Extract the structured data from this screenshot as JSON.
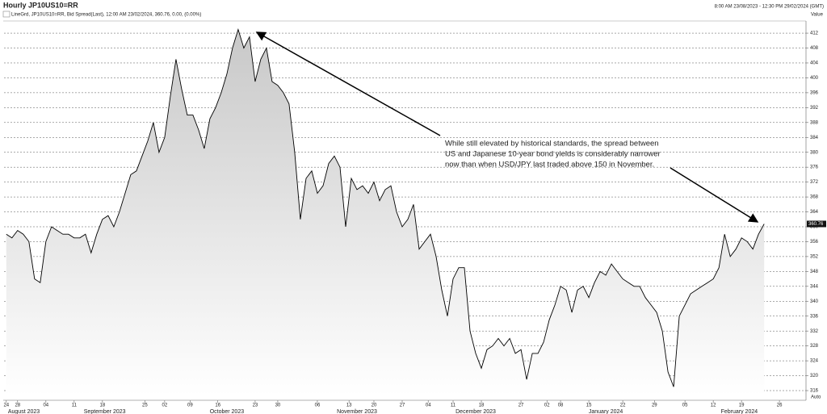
{
  "header": {
    "title": "Hourly JP10US10=RR",
    "time_range": "8:00 AM 23/08/2023 - 12:30 PM 29/02/2024 (GMT)"
  },
  "chart_data": {
    "type": "area",
    "legend_text": "LineGrd, JP10US10=RR, Bid Spread(Last), 12:00 AM 23/02/2024, 360.76, 0.00, (0.00%)",
    "y_axis_label": "Value",
    "corner_label": "Auto",
    "last_value": 360.76,
    "annotation": [
      "While still elevated by historical standards, the spread between",
      "US and Japanese 10-year bond yields is considerably narrower",
      "now than when USD/JPY last traded above 150 in November."
    ],
    "x": [
      0,
      1,
      2,
      3,
      4,
      5,
      6,
      7,
      8,
      9,
      10,
      11,
      12,
      13,
      14,
      15,
      16,
      17,
      18,
      19,
      20,
      21,
      22,
      23,
      24,
      25,
      26,
      27,
      28,
      29,
      30,
      31,
      32,
      33,
      34,
      35,
      36,
      37,
      38,
      39,
      40,
      41,
      42,
      43,
      44,
      45,
      46,
      47,
      48,
      49,
      50,
      51,
      52,
      53,
      54,
      55,
      56,
      57,
      58,
      59,
      60,
      61,
      62,
      63,
      64,
      65,
      66,
      67,
      68,
      69,
      70,
      71,
      72,
      73,
      74,
      75,
      76,
      77,
      78,
      79,
      80,
      81,
      82,
      83,
      84,
      85,
      86,
      87,
      88,
      89,
      90,
      91,
      92,
      93,
      94,
      95,
      96,
      97,
      98,
      99,
      100,
      101,
      102,
      103,
      104,
      105,
      106,
      107,
      108,
      109,
      110,
      111,
      112,
      113,
      114,
      115,
      116,
      117,
      118,
      119,
      120,
      121,
      122,
      123,
      124,
      125,
      126,
      127,
      128,
      129,
      130,
      131,
      132,
      133,
      134
    ],
    "values": [
      358,
      357,
      359,
      358,
      356,
      346,
      345,
      356,
      360,
      359,
      358,
      358,
      357,
      357,
      358,
      353,
      358,
      362,
      363,
      360,
      364,
      369,
      374,
      375,
      379,
      383,
      388,
      380,
      384,
      395,
      405,
      397,
      390,
      390,
      386,
      381,
      389,
      392,
      396,
      401,
      408,
      413,
      408,
      411,
      399,
      405,
      408,
      399,
      398,
      396,
      393,
      380,
      362,
      373,
      375,
      369,
      371,
      377,
      379,
      376,
      360,
      373,
      370,
      371,
      369,
      372,
      367,
      370,
      371,
      364,
      360,
      362,
      366,
      354,
      356,
      358,
      352,
      343,
      336,
      346,
      349,
      349,
      332,
      326,
      322,
      327,
      328,
      330,
      328,
      330,
      326,
      327,
      319,
      326,
      326,
      329,
      335,
      339,
      344,
      343,
      337,
      343,
      344,
      341,
      345,
      348,
      347,
      350,
      348,
      346,
      345,
      344,
      344,
      341,
      339,
      337,
      332,
      321,
      317,
      336,
      339,
      342,
      343,
      344,
      345,
      346,
      349,
      358,
      352,
      354,
      357,
      356,
      354,
      358,
      360.76
    ],
    "color": "#000000",
    "fill": "#cfcfcf",
    "xlim": [
      -0.4,
      141.4
    ],
    "ylim": [
      314.7,
      414.4
    ],
    "yticks": [
      316,
      320,
      324,
      328,
      332,
      336,
      340,
      344,
      348,
      352,
      356,
      360,
      364,
      368,
      372,
      376,
      380,
      384,
      388,
      392,
      396,
      400,
      404,
      408,
      412
    ],
    "xticks": [
      {
        "value": 0,
        "label": "24"
      },
      {
        "value": 2,
        "label": "28"
      },
      {
        "value": 7,
        "label": "04"
      },
      {
        "value": 12,
        "label": "11"
      },
      {
        "value": 17,
        "label": "18"
      },
      {
        "value": 24.5,
        "label": "25"
      },
      {
        "value": 28,
        "label": "02"
      },
      {
        "value": 32.5,
        "label": "09"
      },
      {
        "value": 37.4,
        "label": "16"
      },
      {
        "value": 44,
        "label": "23"
      },
      {
        "value": 48,
        "label": "30"
      },
      {
        "value": 55,
        "label": "06"
      },
      {
        "value": 60.6,
        "label": "13"
      },
      {
        "value": 65,
        "label": "20"
      },
      {
        "value": 70,
        "label": "27"
      },
      {
        "value": 74.6,
        "label": "04"
      },
      {
        "value": 79,
        "label": "11"
      },
      {
        "value": 84,
        "label": "18"
      },
      {
        "value": 91,
        "label": "27"
      },
      {
        "value": 95.6,
        "label": "02"
      },
      {
        "value": 98,
        "label": "08"
      },
      {
        "value": 103,
        "label": "15"
      },
      {
        "value": 109,
        "label": "22"
      },
      {
        "value": 114.6,
        "label": "29"
      },
      {
        "value": 120,
        "label": "05"
      },
      {
        "value": 125,
        "label": "12"
      },
      {
        "value": 130,
        "label": "19"
      },
      {
        "value": 136.7,
        "label": "26"
      }
    ],
    "x_groups": [
      {
        "value": 3.1,
        "label": "August 2023"
      },
      {
        "value": 17.4,
        "label": "September 2023"
      },
      {
        "value": 39,
        "label": "October 2023"
      },
      {
        "value": 62,
        "label": "November 2023"
      },
      {
        "value": 83,
        "label": "December 2023"
      },
      {
        "value": 106,
        "label": "January 2024"
      },
      {
        "value": 129.6,
        "label": "February 2024"
      }
    ],
    "grid": true
  }
}
